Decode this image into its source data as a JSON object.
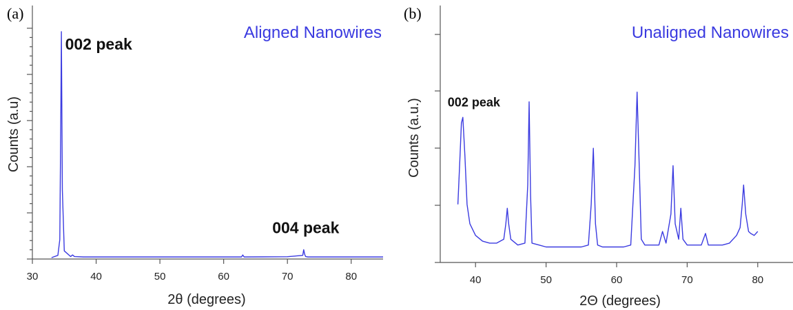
{
  "chart_data": [
    {
      "panel_label": "(a)",
      "type": "line",
      "xlabel": "2θ (degrees)",
      "ylabel": "Counts (a.u)",
      "xlim": [
        30,
        85
      ],
      "ylim": [
        0,
        100
      ],
      "xticks": [
        30,
        40,
        50,
        60,
        70,
        80
      ],
      "grid": false,
      "legend": "top-right",
      "color": "#3a3ae0",
      "series": [
        {
          "name": "Aligned Nanowires",
          "x": [
            33,
            34.0,
            34.3,
            34.45,
            34.55,
            34.7,
            35.0,
            36.0,
            36.3,
            36.6,
            38,
            40,
            50,
            60,
            62.8,
            63.0,
            63.2,
            70,
            72.4,
            72.55,
            72.7,
            72.85,
            73.2,
            80,
            85
          ],
          "y": [
            0,
            1,
            8,
            60,
            100,
            30,
            3,
            0.5,
            1.2,
            0.5,
            0.3,
            0.3,
            0.3,
            0.3,
            0.3,
            1.2,
            0.3,
            0.4,
            1,
            3.5,
            1.5,
            0.5,
            0.3,
            0.3,
            0.3
          ]
        }
      ],
      "annotations": [
        {
          "text": "002 peak",
          "x": 34.5,
          "y": 100
        },
        {
          "text": "004 peak",
          "x": 72.6,
          "y": 3.5
        }
      ]
    },
    {
      "panel_label": "(b)",
      "type": "line",
      "xlabel": "2Θ (degrees)",
      "ylabel": "Counts (a.u.)",
      "xlim": [
        35,
        85
      ],
      "ylim": [
        0,
        100
      ],
      "xticks": [
        40,
        50,
        60,
        70,
        80
      ],
      "grid": false,
      "legend": "top-right",
      "color": "#3a3ae0",
      "series": [
        {
          "name": "Unaligned Nanowires",
          "x": [
            37.5,
            37.8,
            38.0,
            38.2,
            38.5,
            38.8,
            39.2,
            40,
            41,
            42,
            43,
            44,
            44.3,
            44.5,
            44.7,
            45,
            46,
            47,
            47.4,
            47.6,
            47.8,
            48,
            49,
            50,
            51,
            52,
            53,
            54,
            55,
            56,
            56.4,
            56.7,
            57,
            57.3,
            58,
            59,
            60,
            61,
            62,
            62.6,
            62.9,
            63.2,
            63.5,
            64,
            65,
            66,
            66.5,
            67,
            67.7,
            68.0,
            68.3,
            68.8,
            69.1,
            69.4,
            70,
            71,
            72,
            72.6,
            73,
            74,
            75,
            76,
            77,
            77.5,
            77.8,
            78.0,
            78.3,
            78.7,
            79,
            79.5,
            80
          ],
          "y": [
            30,
            55,
            72,
            75,
            55,
            30,
            20,
            14,
            11,
            10,
            10,
            12,
            20,
            28,
            20,
            12,
            9,
            10,
            40,
            83,
            35,
            10,
            9,
            8,
            8,
            8,
            8,
            8,
            8,
            9,
            30,
            59,
            20,
            9,
            8,
            8,
            8,
            8,
            9,
            50,
            88,
            50,
            12,
            9,
            9,
            9,
            16,
            10,
            25,
            50,
            20,
            12,
            28,
            12,
            9,
            9,
            9,
            15,
            9,
            9,
            9,
            10,
            14,
            18,
            30,
            40,
            25,
            16,
            15,
            14,
            16
          ]
        }
      ],
      "annotations": [
        {
          "text": "002 peak",
          "x": 38.2,
          "y": 75
        }
      ]
    }
  ]
}
